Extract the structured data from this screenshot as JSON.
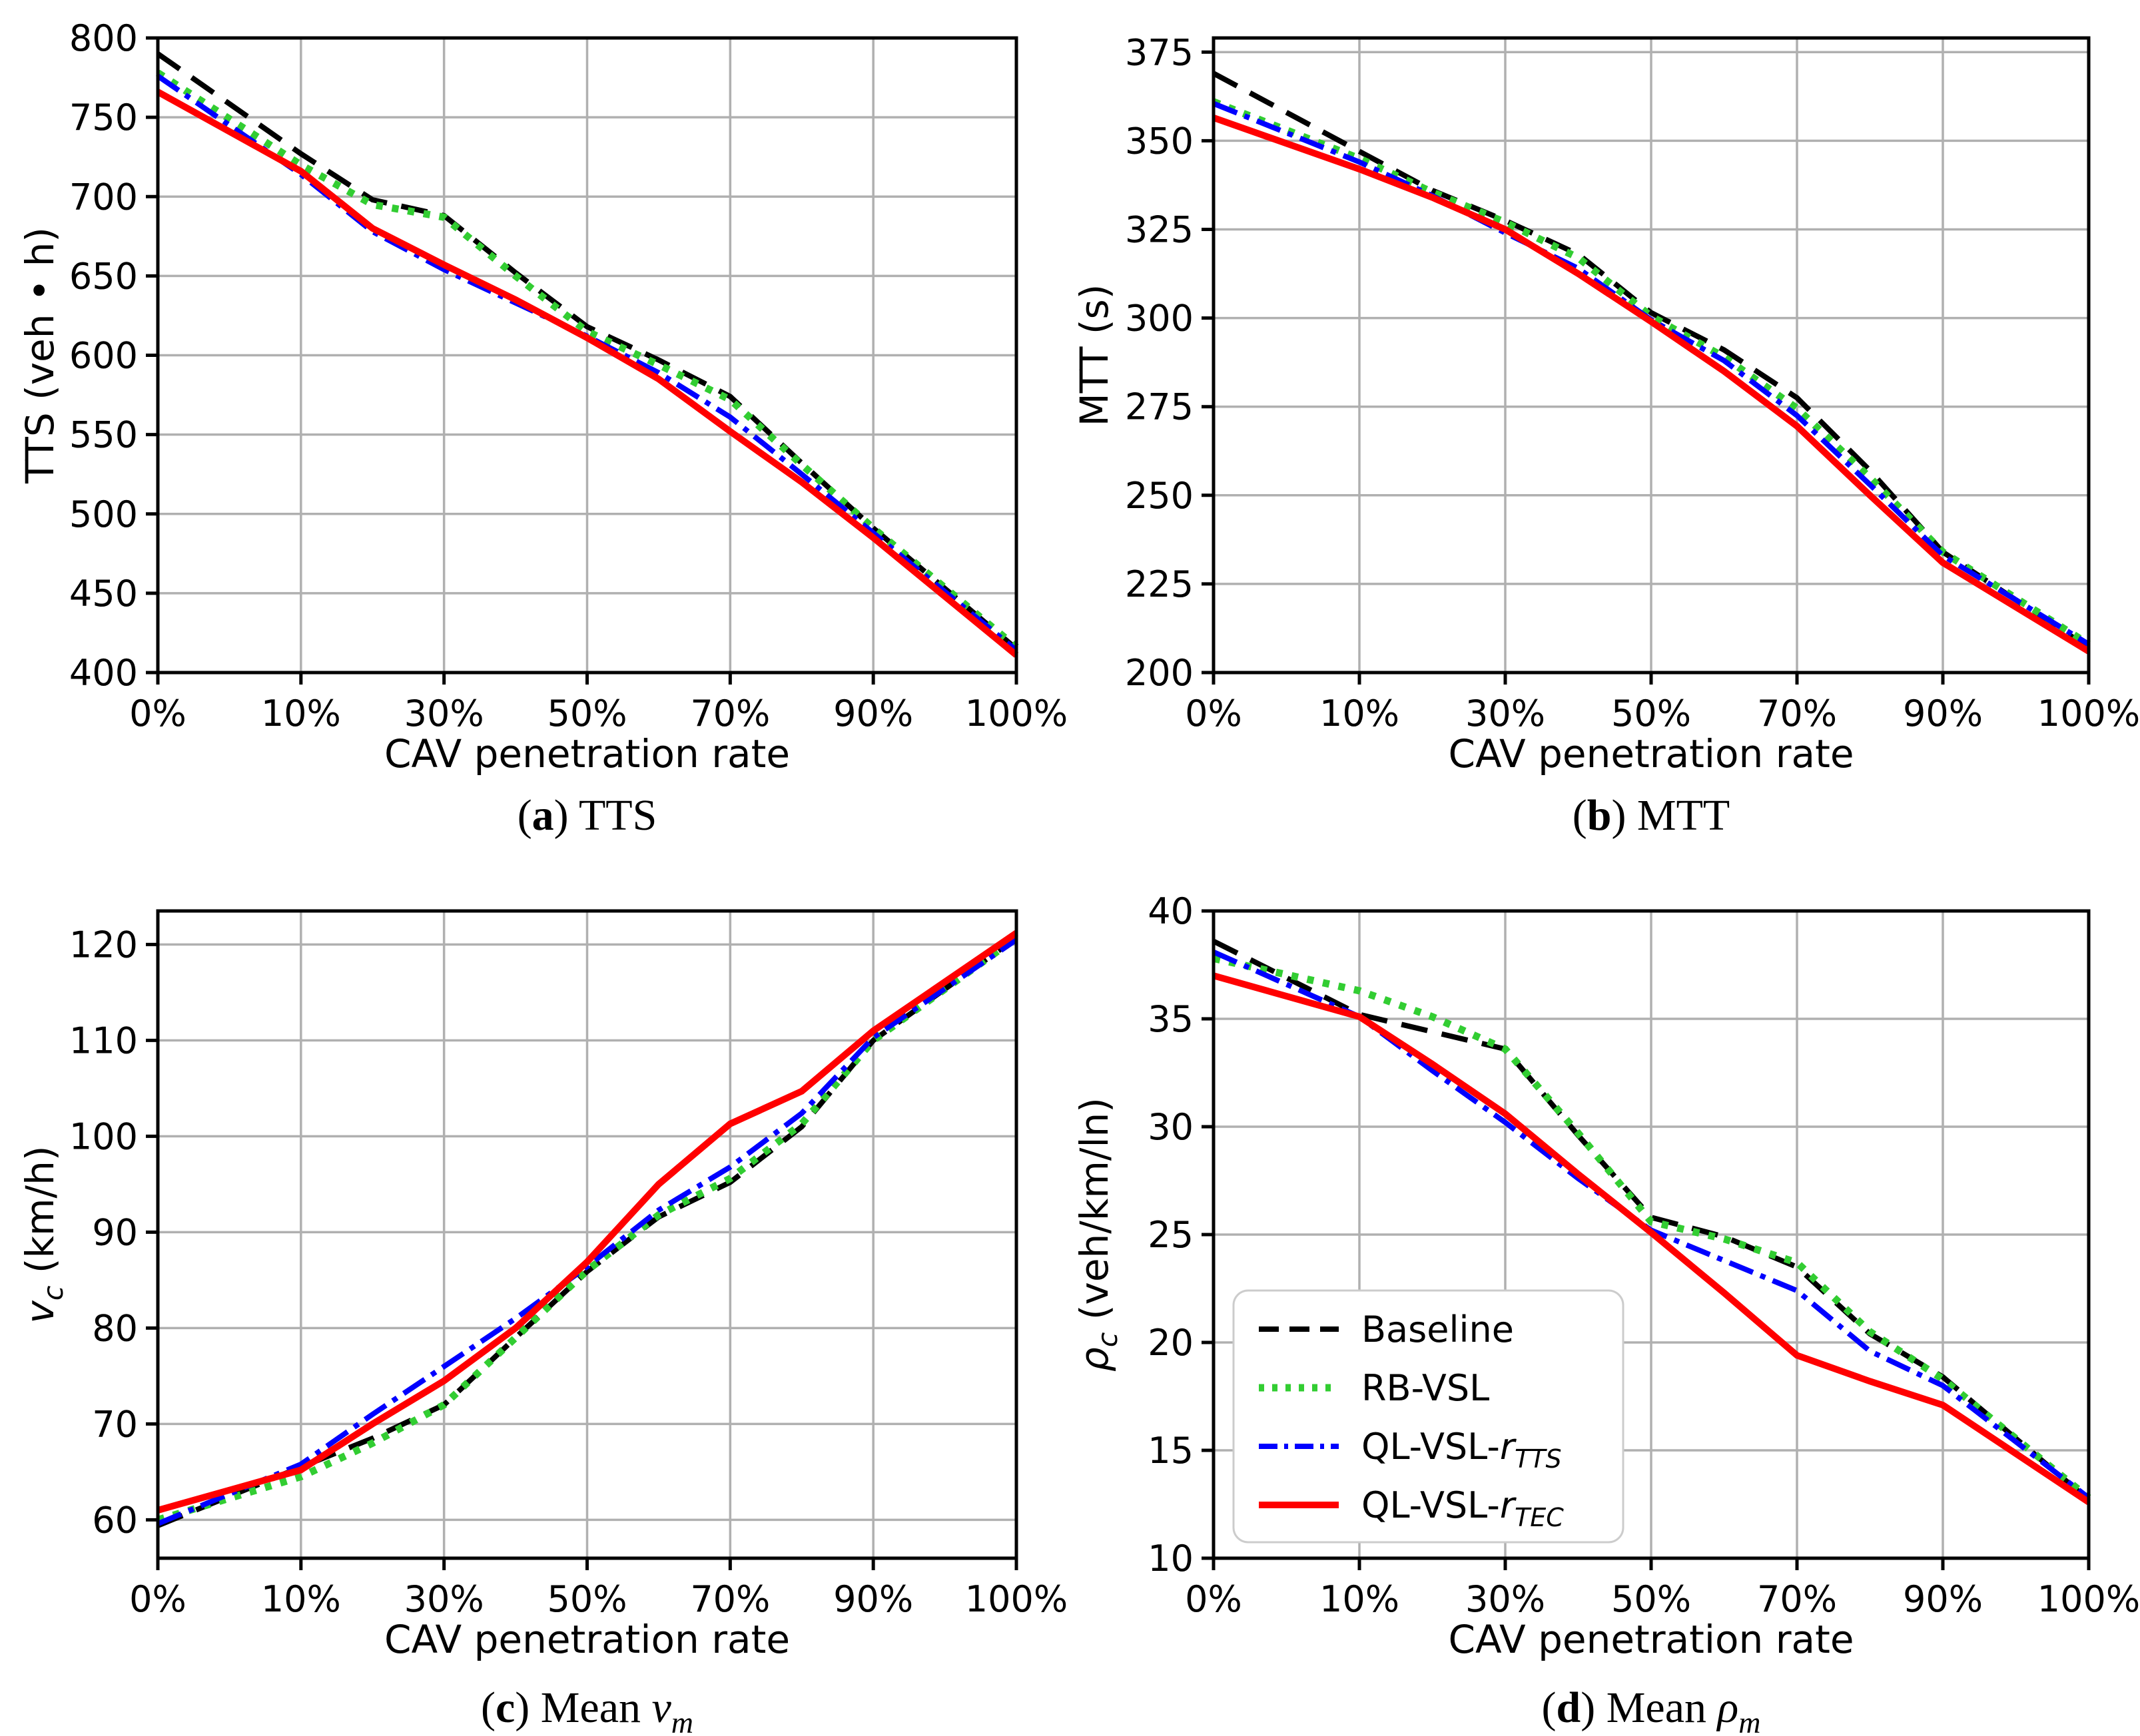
{
  "figure": {
    "title": "",
    "background": "#ffffff",
    "xlabel": "CAV penetration rate",
    "x_tick_labels": [
      "0%",
      "10%",
      "30%",
      "50%",
      "70%",
      "90%",
      "100%"
    ],
    "x_tick_values": [
      0,
      10,
      30,
      50,
      70,
      90,
      100
    ],
    "grid": "on",
    "grid_color": "#b0b0b0",
    "spine_color": "#000000",
    "colors": {
      "baseline": "#000000",
      "rb_vsl": "#32CD32",
      "ql_vsl_rtts": "#0000FF",
      "ql_vsl_rtec": "#FF0000"
    },
    "legend_position": "lower-left-of-chart-d"
  },
  "series_labels": {
    "baseline": [
      {
        "t": "Baseline"
      }
    ],
    "rb_vsl": [
      {
        "t": "RB-VSL"
      }
    ],
    "ql_vsl_rtts": [
      {
        "t": "QL-VSL-"
      },
      {
        "t": "r",
        "i": true
      },
      {
        "t": "TTS",
        "i": true,
        "sub": true
      }
    ],
    "ql_vsl_rtec": [
      {
        "t": "QL-VSL-"
      },
      {
        "t": "r",
        "i": true
      },
      {
        "t": "TEC",
        "i": true,
        "sub": true
      }
    ]
  },
  "chart_data": [
    {
      "id": "a",
      "type": "line",
      "caption": [
        {
          "t": "("
        },
        {
          "t": "a",
          "b": true
        },
        {
          "t": ") TTS"
        }
      ],
      "ylabel": [
        {
          "t": "TTS (veh • h)"
        }
      ],
      "xlabel": "CAV penetration rate",
      "x": [
        0,
        10,
        20,
        30,
        40,
        50,
        60,
        70,
        80,
        90,
        100
      ],
      "x_tick_labels": [
        "0%",
        "10%",
        "30%",
        "50%",
        "70%",
        "90%",
        "100%"
      ],
      "y_ticks": [
        400,
        450,
        500,
        550,
        600,
        650,
        700,
        750,
        800
      ],
      "ylim": [
        400,
        800
      ],
      "legend": false,
      "series": [
        {
          "key": "baseline",
          "style": "dashed",
          "values": [
            790,
            727,
            698,
            688,
            652,
            618,
            597,
            574,
            532,
            491,
            415
          ]
        },
        {
          "key": "rb_vsl",
          "style": "dotted",
          "values": [
            778,
            720,
            695,
            687,
            650,
            615,
            594,
            572,
            531,
            491,
            416
          ]
        },
        {
          "key": "ql_vsl_rtts",
          "style": "dashdot",
          "values": [
            776,
            714,
            678,
            654,
            633,
            612,
            589,
            561,
            525,
            488,
            414
          ]
        },
        {
          "key": "ql_vsl_rtec",
          "style": "solid",
          "values": [
            766,
            716,
            680,
            657,
            635,
            611,
            585,
            552,
            520,
            485,
            411
          ]
        }
      ]
    },
    {
      "id": "b",
      "type": "line",
      "caption": [
        {
          "t": "("
        },
        {
          "t": "b",
          "b": true
        },
        {
          "t": ") MTT"
        }
      ],
      "ylabel": [
        {
          "t": "MTT (s)"
        }
      ],
      "xlabel": "CAV penetration rate",
      "x": [
        0,
        10,
        20,
        30,
        40,
        50,
        60,
        70,
        80,
        90,
        100
      ],
      "x_tick_labels": [
        "0%",
        "10%",
        "30%",
        "50%",
        "70%",
        "90%",
        "100%"
      ],
      "y_ticks": [
        200,
        225,
        250,
        275,
        300,
        325,
        350,
        375
      ],
      "ylim": [
        200,
        379
      ],
      "legend": false,
      "series": [
        {
          "key": "baseline",
          "style": "dashed",
          "values": [
            369,
            347,
            336,
            327.5,
            318,
            301.5,
            291,
            277.5,
            257,
            234,
            207
          ]
        },
        {
          "key": "rb_vsl",
          "style": "dotted",
          "values": [
            361,
            345,
            335.5,
            327,
            317,
            300.5,
            289,
            274.5,
            255,
            234,
            208
          ]
        },
        {
          "key": "ql_vsl_rtts",
          "style": "dashdot",
          "values": [
            360.5,
            344,
            334.5,
            324,
            314,
            299.5,
            288,
            272.5,
            253,
            233,
            208
          ]
        },
        {
          "key": "ql_vsl_rtec",
          "style": "solid",
          "values": [
            356.5,
            342,
            334,
            325,
            312.5,
            299,
            285,
            269.5,
            250,
            231,
            206
          ]
        }
      ]
    },
    {
      "id": "c",
      "type": "line",
      "caption": [
        {
          "t": "("
        },
        {
          "t": "c",
          "b": true
        },
        {
          "t": ") Mean "
        },
        {
          "t": "v",
          "i": true,
          "serif": true
        },
        {
          "t": "m",
          "i": true,
          "sub": true,
          "serif": true
        }
      ],
      "ylabel": [
        {
          "t": "v",
          "i": true
        },
        {
          "t": "c",
          "i": true,
          "sub": true
        },
        {
          "t": " (km/h)"
        }
      ],
      "xlabel": "CAV penetration rate",
      "x": [
        0,
        10,
        20,
        30,
        40,
        50,
        60,
        70,
        80,
        90,
        100
      ],
      "x_tick_labels": [
        "0%",
        "10%",
        "30%",
        "50%",
        "70%",
        "90%",
        "100%"
      ],
      "y_ticks": [
        60,
        70,
        80,
        90,
        100,
        110,
        120
      ],
      "ylim": [
        56,
        123.5
      ],
      "legend": false,
      "series": [
        {
          "key": "baseline",
          "style": "dashed",
          "values": [
            59.4,
            65.5,
            68.5,
            72,
            79,
            85.9,
            91.6,
            95.2,
            101,
            110,
            120.7
          ]
        },
        {
          "key": "rb_vsl",
          "style": "dotted",
          "values": [
            60,
            64.5,
            68,
            72,
            79,
            86,
            91.8,
            95.6,
            101.3,
            110,
            120.7
          ]
        },
        {
          "key": "ql_vsl_rtts",
          "style": "dashdot",
          "values": [
            59.6,
            65.8,
            71,
            76,
            81,
            86.4,
            92.3,
            96.8,
            102.4,
            110.3,
            120.5
          ]
        },
        {
          "key": "ql_vsl_rtec",
          "style": "solid",
          "values": [
            61,
            65.2,
            70,
            74.5,
            80,
            86.9,
            95,
            101.3,
            104.7,
            111,
            121.2
          ]
        }
      ]
    },
    {
      "id": "d",
      "type": "line",
      "caption": [
        {
          "t": "("
        },
        {
          "t": "d",
          "b": true
        },
        {
          "t": ") Mean "
        },
        {
          "t": "ρ",
          "i": true,
          "serif": true
        },
        {
          "t": "m",
          "i": true,
          "sub": true,
          "serif": true
        }
      ],
      "ylabel": [
        {
          "t": "ρ",
          "i": true
        },
        {
          "t": "c",
          "i": true,
          "sub": true
        },
        {
          "t": " (veh/km/ln)"
        }
      ],
      "xlabel": "CAV penetration rate",
      "x": [
        0,
        10,
        20,
        30,
        40,
        50,
        60,
        70,
        80,
        90,
        100
      ],
      "x_tick_labels": [
        "0%",
        "10%",
        "30%",
        "50%",
        "70%",
        "90%",
        "100%"
      ],
      "y_ticks": [
        10,
        15,
        20,
        25,
        30,
        35,
        40
      ],
      "ylim": [
        10,
        40
      ],
      "legend": true,
      "series": [
        {
          "key": "baseline",
          "style": "dashed",
          "values": [
            38.6,
            35.2,
            34.4,
            33.6,
            29.6,
            25.8,
            24.9,
            23.5,
            20.4,
            18.4,
            12.7
          ]
        },
        {
          "key": "rb_vsl",
          "style": "dotted",
          "values": [
            37.8,
            36.3,
            35.1,
            33.6,
            29.7,
            25.6,
            24.8,
            23.7,
            20.5,
            18.3,
            12.8
          ]
        },
        {
          "key": "ql_vsl_rtts",
          "style": "dashdot",
          "values": [
            38.1,
            35.1,
            32.6,
            30.2,
            27.6,
            25.2,
            23.8,
            22.4,
            19.6,
            18,
            12.8
          ]
        },
        {
          "key": "ql_vsl_rtec",
          "style": "solid",
          "values": [
            37,
            35.1,
            32.9,
            30.6,
            27.8,
            25.1,
            22.3,
            19.4,
            18.2,
            17.1,
            12.6
          ]
        }
      ]
    }
  ]
}
